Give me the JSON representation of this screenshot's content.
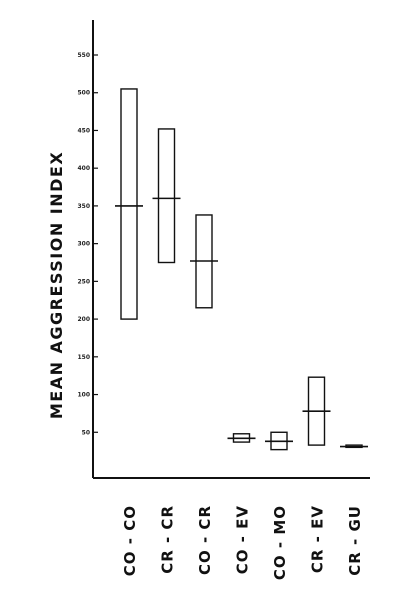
{
  "chart_data": {
    "type": "box",
    "ylabel": "MEAN AGGRESSION INDEX",
    "xlabel": "",
    "ylim": [
      0,
      580
    ],
    "yticks": [
      50,
      100,
      150,
      200,
      250,
      300,
      350,
      400,
      450,
      500,
      550
    ],
    "ytick_labels": [
      "50",
      "100",
      "150",
      "200",
      "250",
      "300",
      "350",
      "400",
      "450",
      "500",
      "550"
    ],
    "categories": [
      "CO - CO",
      "CR - CR",
      "CO - CR",
      "CO - EV",
      "CO - MO",
      "CR - EV",
      "CR - GU"
    ],
    "boxes": [
      {
        "low": 200,
        "high": 505,
        "mean": 350
      },
      {
        "low": 275,
        "high": 452,
        "mean": 360
      },
      {
        "low": 215,
        "high": 338,
        "mean": 277
      },
      {
        "low": 37,
        "high": 48,
        "mean": 42
      },
      {
        "low": 27,
        "high": 50,
        "mean": 38
      },
      {
        "low": 33,
        "high": 123,
        "mean": 78
      },
      {
        "low": 30,
        "high": 33,
        "mean": 31
      }
    ]
  }
}
